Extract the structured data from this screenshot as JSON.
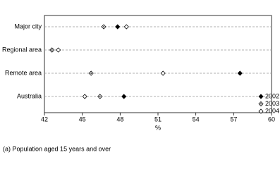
{
  "chart_data": {
    "type": "dot",
    "categories": [
      "Major city",
      "Regional area",
      "Remote area",
      "Australia"
    ],
    "series": [
      {
        "name": "2002",
        "color": "#000000",
        "marker": "filled",
        "values": [
          47.8,
          42.6,
          57.5,
          48.3
        ]
      },
      {
        "name": "2003",
        "color": "#000000",
        "marker": "dotted",
        "values": [
          46.7,
          42.6,
          45.7,
          46.4
        ]
      },
      {
        "name": "2004",
        "color": "#000000",
        "marker": "open",
        "values": [
          48.5,
          43.1,
          51.4,
          45.2
        ]
      }
    ],
    "xlim": [
      42,
      60
    ],
    "xticks": [
      42,
      45,
      48,
      51,
      54,
      57,
      60
    ],
    "xlabel": "%",
    "footnote": "(a) Population aged 15 years and over",
    "legend": "lower right"
  }
}
